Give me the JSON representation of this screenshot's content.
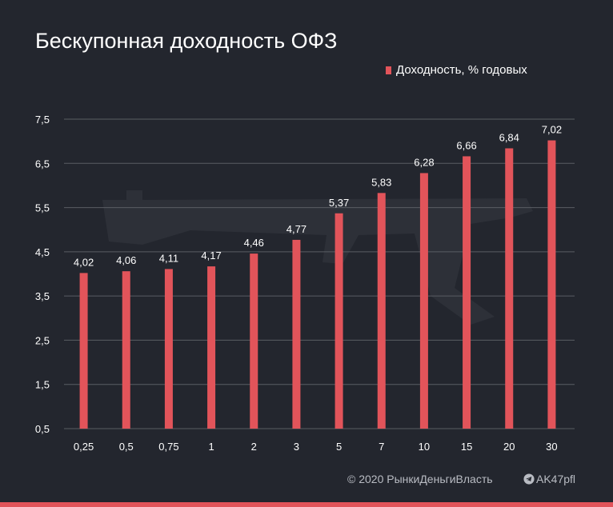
{
  "header": {
    "title": "Бескупонная доходность ОФЗ"
  },
  "legend": {
    "label": "Доходность, % годовых"
  },
  "footer": {
    "copyright": "© 2020  РынкиДеньгиВласть",
    "channel": "AK47pfl"
  },
  "colors": {
    "bar": "#e2545a",
    "background": "#23262e",
    "grid": "#5a5d63",
    "text": "#ffffff"
  },
  "icons": {
    "channel": "telegram-icon",
    "watermark": "rifle-icon"
  },
  "chart_data": {
    "type": "bar",
    "title": "Бескупонная доходность ОФЗ",
    "xlabel": "",
    "ylabel": "",
    "categories": [
      "0,25",
      "0,5",
      "0,75",
      "1",
      "2",
      "3",
      "5",
      "7",
      "10",
      "15",
      "20",
      "30"
    ],
    "series": [
      {
        "name": "Доходность, % годовых",
        "values": [
          4.02,
          4.06,
          4.11,
          4.17,
          4.46,
          4.77,
          5.37,
          5.83,
          6.28,
          6.66,
          6.84,
          7.02
        ],
        "labels": [
          "4,02",
          "4,06",
          "4,11",
          "4,17",
          "4,46",
          "4,77",
          "5,37",
          "5,83",
          "6,28",
          "6,66",
          "6,84",
          "7,02"
        ]
      }
    ],
    "ylim": [
      0.5,
      7.5
    ],
    "yticks": [
      0.5,
      1.5,
      2.5,
      3.5,
      4.5,
      5.5,
      6.5,
      7.5
    ],
    "ytick_labels": [
      "0,5",
      "1,5",
      "2,5",
      "3,5",
      "4,5",
      "5,5",
      "6,5",
      "7,5"
    ],
    "grid": true,
    "legend_position": "top-right"
  }
}
